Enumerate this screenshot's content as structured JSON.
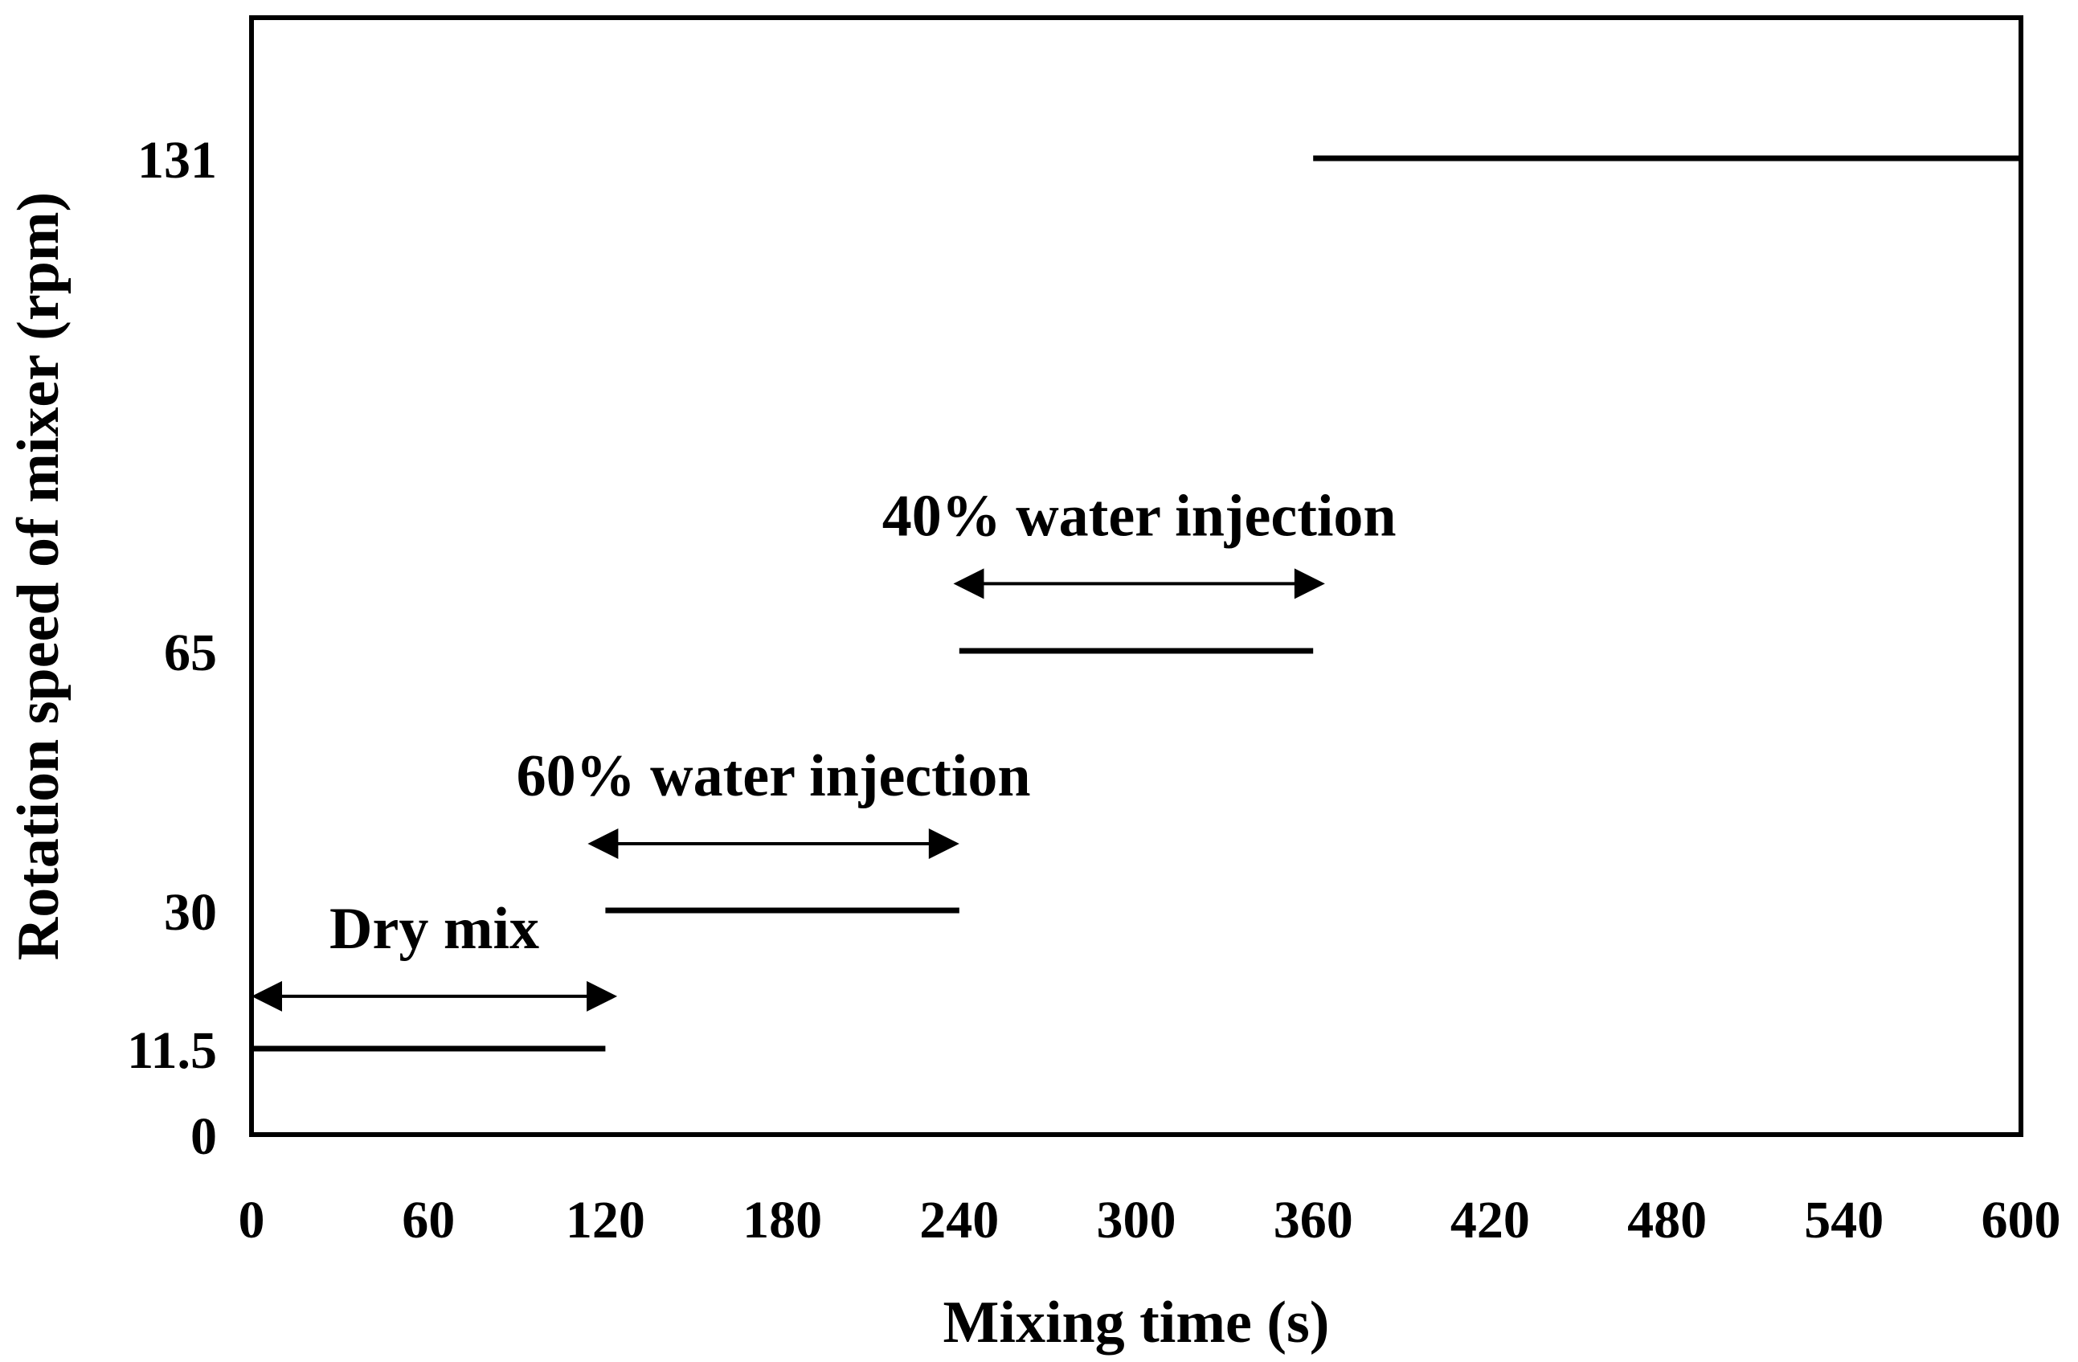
{
  "chart_data": {
    "type": "line",
    "title": "",
    "xlabel": "Mixing time (s)",
    "ylabel": "Rotation speed of  mixer (rpm)",
    "xlim": [
      0,
      600
    ],
    "x_ticks": [
      0,
      60,
      120,
      180,
      240,
      300,
      360,
      420,
      480,
      540,
      600
    ],
    "y_ticks": [
      {
        "value": 0,
        "label": "0"
      },
      {
        "value": 11.5,
        "label": "11.5"
      },
      {
        "value": 30,
        "label": "30"
      },
      {
        "value": 65,
        "label": "65"
      },
      {
        "value": 131,
        "label": "131"
      }
    ],
    "grid": false,
    "series": [
      {
        "name": "Rotation speed",
        "segments": [
          {
            "x_start": 0,
            "x_end": 120,
            "rpm": 11.5
          },
          {
            "x_start": 120,
            "x_end": 240,
            "rpm": 30
          },
          {
            "x_start": 240,
            "x_end": 360,
            "rpm": 65
          },
          {
            "x_start": 360,
            "x_end": 600,
            "rpm": 131
          }
        ]
      }
    ],
    "annotations": [
      {
        "text": "Dry mix",
        "x_start": 0,
        "x_end": 124,
        "level_rpm": 18.5
      },
      {
        "text": "60% water injection",
        "x_start": 114,
        "x_end": 240,
        "level_rpm": 39
      },
      {
        "text": "40% water injection",
        "x_start": 238,
        "x_end": 364,
        "level_rpm": 74
      }
    ],
    "colors": {
      "line": "#000000",
      "axis": "#000000",
      "background": "#ffffff"
    }
  }
}
